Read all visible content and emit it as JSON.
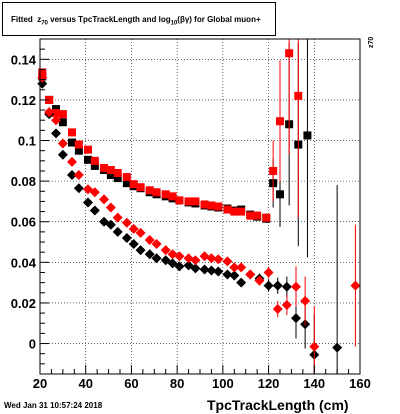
{
  "canvas": {
    "title": "Fitted  z_{70} versus TpcTrackLength and log_{10}(βγ) for Global muon+",
    "footer_date": "Wed Jan 31 10:57:24 2018",
    "y_title": "z70"
  },
  "chart_data": {
    "type": "scatter",
    "title": "Fitted  z_{70} versus TpcTrackLength and log_{10}(βγ) for Global muon+",
    "xlabel": "TpcTrackLength (cm)",
    "ylabel": "z70",
    "xlim": [
      20,
      160
    ],
    "ylim": [
      -0.015,
      0.15
    ],
    "x_ticks": [
      20,
      40,
      60,
      80,
      100,
      120,
      140,
      160
    ],
    "y_ticks": [
      0,
      0.02,
      0.04,
      0.06,
      0.08,
      0.1,
      0.12,
      0.14
    ],
    "x_tick_labels": [
      "20",
      "40",
      "60",
      "80",
      "100",
      "120",
      "140",
      "160"
    ],
    "y_tick_labels": [
      "0",
      "0.02",
      "0.04",
      "0.06",
      "0.08",
      "0.1",
      "0.12",
      "0.14"
    ],
    "grid": true,
    "colors": {
      "red": "#ff0000",
      "black": "#000000"
    },
    "series": [
      {
        "marker": "square",
        "color": "#000000",
        "points": [
          [
            21,
            0.1315,
            0.002
          ],
          [
            24,
            0.12,
            0.0015
          ],
          [
            27,
            0.1155,
            0.0012
          ],
          [
            30,
            0.109,
            0.001
          ],
          [
            34,
            0.099,
            0.001
          ],
          [
            37,
            0.095,
            0.001
          ],
          [
            41,
            0.0905,
            0.001
          ],
          [
            44,
            0.0875,
            0.001
          ],
          [
            48,
            0.0855,
            0.001
          ],
          [
            51,
            0.083,
            0.001
          ],
          [
            54,
            0.0815,
            0.001
          ],
          [
            58,
            0.079,
            0.001
          ],
          [
            61,
            0.0775,
            0.001
          ],
          [
            64,
            0.0765,
            0.001
          ],
          [
            68,
            0.0745,
            0.001
          ],
          [
            71,
            0.0735,
            0.001
          ],
          [
            75,
            0.0725,
            0.001
          ],
          [
            78,
            0.0715,
            0.001
          ],
          [
            81,
            0.0705,
            0.001
          ],
          [
            85,
            0.0695,
            0.001
          ],
          [
            88,
            0.069,
            0.001
          ],
          [
            92,
            0.068,
            0.001
          ],
          [
            95,
            0.0675,
            0.001
          ],
          [
            98,
            0.067,
            0.001
          ],
          [
            102,
            0.0665,
            0.001
          ],
          [
            105,
            0.0655,
            0.0015
          ],
          [
            108,
            0.066,
            0.0015
          ],
          [
            112,
            0.0635,
            0.002
          ],
          [
            115,
            0.0625,
            0.002
          ],
          [
            119,
            0.0615,
            0.002
          ],
          [
            122,
            0.079,
            0.012
          ],
          [
            125,
            0.0735,
            0.016
          ],
          [
            129,
            0.108,
            0.04
          ],
          [
            133,
            0.098,
            0.05
          ],
          [
            137,
            0.1025,
            0.06
          ]
        ]
      },
      {
        "marker": "square",
        "color": "#ff0000",
        "points": [
          [
            21,
            0.1335,
            0.002
          ],
          [
            24,
            0.12,
            0.0015
          ],
          [
            27,
            0.1135,
            0.0012
          ],
          [
            30,
            0.113,
            0.001
          ],
          [
            34,
            0.104,
            0.001
          ],
          [
            37,
            0.098,
            0.001
          ],
          [
            41,
            0.0955,
            0.001
          ],
          [
            44,
            0.09,
            0.001
          ],
          [
            48,
            0.0865,
            0.001
          ],
          [
            51,
            0.0855,
            0.001
          ],
          [
            54,
            0.084,
            0.001
          ],
          [
            58,
            0.082,
            0.001
          ],
          [
            61,
            0.0785,
            0.001
          ],
          [
            64,
            0.077,
            0.001
          ],
          [
            68,
            0.0755,
            0.001
          ],
          [
            71,
            0.0745,
            0.001
          ],
          [
            75,
            0.0735,
            0.001
          ],
          [
            78,
            0.0725,
            0.001
          ],
          [
            81,
            0.0705,
            0.001
          ],
          [
            85,
            0.07,
            0.001
          ],
          [
            88,
            0.07,
            0.001
          ],
          [
            92,
            0.0685,
            0.001
          ],
          [
            95,
            0.068,
            0.001
          ],
          [
            98,
            0.0675,
            0.001
          ],
          [
            102,
            0.066,
            0.001
          ],
          [
            105,
            0.065,
            0.0015
          ],
          [
            108,
            0.065,
            0.0015
          ],
          [
            112,
            0.063,
            0.002
          ],
          [
            115,
            0.063,
            0.002
          ],
          [
            119,
            0.062,
            0.002
          ],
          [
            122,
            0.085,
            0.015
          ],
          [
            125,
            0.1095,
            0.03
          ],
          [
            129,
            0.143,
            0.05
          ],
          [
            133,
            0.122,
            0.06
          ]
        ]
      },
      {
        "marker": "diamond",
        "color": "#000000",
        "points": [
          [
            21,
            0.128,
            0.002
          ],
          [
            24,
            0.113,
            0.0015
          ],
          [
            27,
            0.1035,
            0.001
          ],
          [
            30,
            0.093,
            0.001
          ],
          [
            34,
            0.083,
            0.001
          ],
          [
            37,
            0.0765,
            0.001
          ],
          [
            41,
            0.0695,
            0.001
          ],
          [
            44,
            0.0655,
            0.001
          ],
          [
            48,
            0.06,
            0.001
          ],
          [
            51,
            0.0585,
            0.001
          ],
          [
            54,
            0.055,
            0.001
          ],
          [
            58,
            0.052,
            0.001
          ],
          [
            61,
            0.049,
            0.001
          ],
          [
            64,
            0.046,
            0.001
          ],
          [
            68,
            0.044,
            0.001
          ],
          [
            71,
            0.042,
            0.001
          ],
          [
            75,
            0.041,
            0.001
          ],
          [
            78,
            0.0395,
            0.001
          ],
          [
            81,
            0.038,
            0.001
          ],
          [
            85,
            0.0385,
            0.001
          ],
          [
            88,
            0.037,
            0.001
          ],
          [
            92,
            0.0365,
            0.001
          ],
          [
            95,
            0.036,
            0.001
          ],
          [
            98,
            0.0355,
            0.001
          ],
          [
            102,
            0.034,
            0.0015
          ],
          [
            105,
            0.0335,
            0.0015
          ],
          [
            108,
            0.03,
            0.002
          ],
          [
            112,
            0.034,
            0.002
          ],
          [
            116,
            0.032,
            0.0025
          ],
          [
            120,
            0.0285,
            0.003
          ],
          [
            124,
            0.0285,
            0.004
          ],
          [
            128,
            0.028,
            0.005
          ],
          [
            132,
            0.0125,
            0.01
          ],
          [
            136,
            0.0095,
            0.012
          ],
          [
            140,
            -0.0055,
            0.02
          ],
          [
            150,
            -0.002,
            0.08
          ]
        ]
      },
      {
        "marker": "diamond",
        "color": "#ff0000",
        "points": [
          [
            21,
            0.131,
            0.002
          ],
          [
            24,
            0.114,
            0.0015
          ],
          [
            27,
            0.11,
            0.001
          ],
          [
            30,
            0.0985,
            0.001
          ],
          [
            34,
            0.0895,
            0.001
          ],
          [
            37,
            0.083,
            0.001
          ],
          [
            41,
            0.076,
            0.001
          ],
          [
            44,
            0.0745,
            0.001
          ],
          [
            48,
            0.071,
            0.001
          ],
          [
            51,
            0.067,
            0.001
          ],
          [
            54,
            0.062,
            0.001
          ],
          [
            58,
            0.0595,
            0.001
          ],
          [
            61,
            0.0565,
            0.001
          ],
          [
            64,
            0.0545,
            0.001
          ],
          [
            68,
            0.051,
            0.001
          ],
          [
            71,
            0.049,
            0.001
          ],
          [
            75,
            0.046,
            0.001
          ],
          [
            78,
            0.044,
            0.001
          ],
          [
            81,
            0.043,
            0.001
          ],
          [
            85,
            0.042,
            0.001
          ],
          [
            88,
            0.041,
            0.001
          ],
          [
            92,
            0.043,
            0.001
          ],
          [
            95,
            0.042,
            0.001
          ],
          [
            98,
            0.0415,
            0.001
          ],
          [
            102,
            0.0405,
            0.0015
          ],
          [
            105,
            0.0375,
            0.0015
          ],
          [
            108,
            0.0375,
            0.0015
          ],
          [
            112,
            0.034,
            0.002
          ],
          [
            116,
            0.031,
            0.0025
          ],
          [
            120,
            0.035,
            0.003
          ],
          [
            124,
            0.017,
            0.004
          ],
          [
            128,
            0.019,
            0.005
          ],
          [
            132,
            0.028,
            0.01
          ],
          [
            136,
            0.021,
            0.012
          ],
          [
            140,
            -0.0015,
            0.02
          ],
          [
            158,
            0.0285,
            0.03
          ]
        ]
      }
    ]
  }
}
